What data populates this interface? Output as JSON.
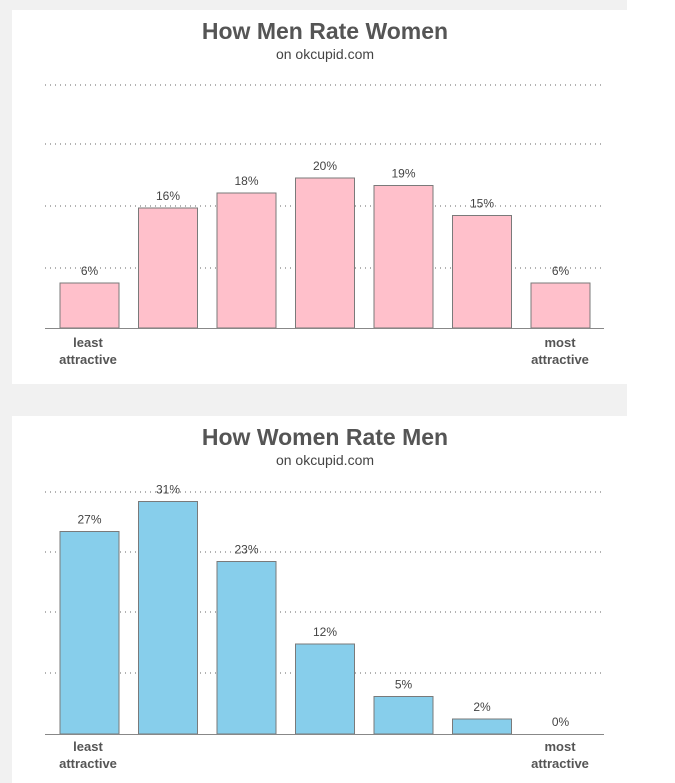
{
  "charts": [
    {
      "title": "How Men Rate Women",
      "subtitle": "on okcupid.com",
      "x_left_label": [
        "least",
        "attractive"
      ],
      "x_right_label": [
        "most",
        "attractive"
      ]
    },
    {
      "title": "How Women Rate Men",
      "subtitle": "on okcupid.com",
      "x_left_label": [
        "least",
        "attractive"
      ],
      "x_right_label": [
        "most",
        "attractive"
      ]
    }
  ],
  "chart_data": [
    {
      "type": "bar",
      "title": "How Men Rate Women",
      "subtitle": "on okcupid.com",
      "categories": [
        "least attractive",
        "",
        "",
        "",
        "",
        "",
        "most attractive"
      ],
      "values": [
        6,
        16,
        18,
        20,
        19,
        15,
        6
      ],
      "value_labels": [
        "6%",
        "16%",
        "18%",
        "20%",
        "19%",
        "15%",
        "6%"
      ],
      "ylim": [
        0,
        25
      ],
      "grid": true,
      "bar_color": "#ffc0cb"
    },
    {
      "type": "bar",
      "title": "How Women Rate Men",
      "subtitle": "on okcupid.com",
      "categories": [
        "least attractive",
        "",
        "",
        "",
        "",
        "",
        "most attractive"
      ],
      "values": [
        27,
        31,
        23,
        12,
        5,
        2,
        0
      ],
      "value_labels": [
        "27%",
        "31%",
        "23%",
        "12%",
        "5%",
        "2%",
        "0%"
      ],
      "ylim": [
        0,
        40
      ],
      "grid": true,
      "bar_color": "#87ceeb"
    }
  ]
}
